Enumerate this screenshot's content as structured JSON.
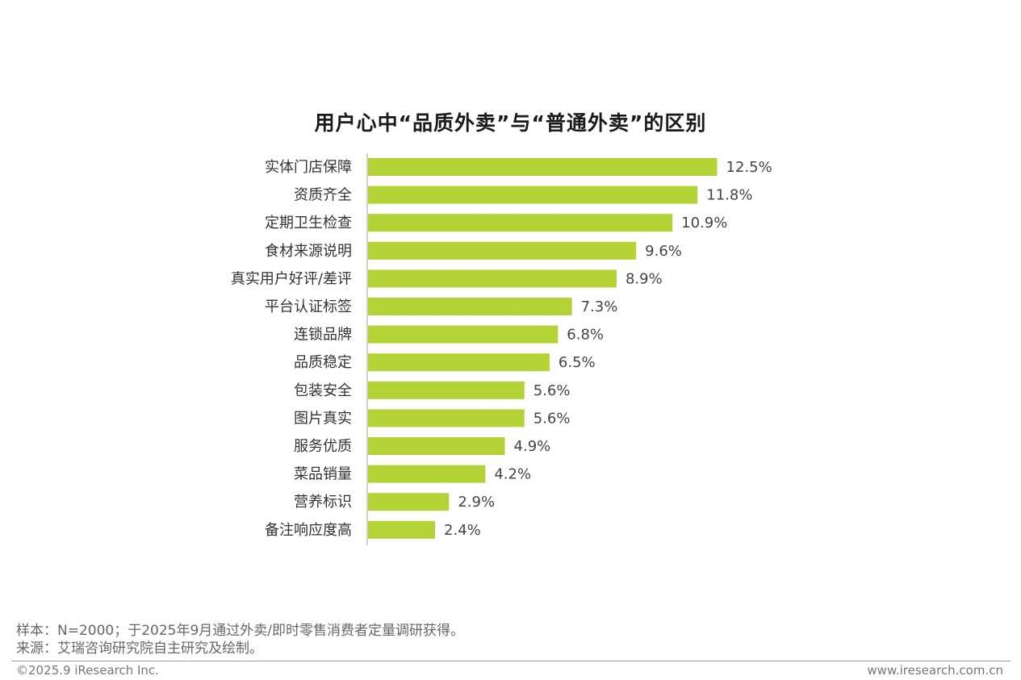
{
  "chart_data": {
    "type": "bar",
    "orientation": "horizontal",
    "title": "用户心中“品质外卖”与“普通外卖”的区别",
    "categories": [
      "实体门店保障",
      "资质齐全",
      "定期卫生检查",
      "食材来源说明",
      "真实用户好评/差评",
      "平台认证标签",
      "连锁品牌",
      "品质稳定",
      "包装安全",
      "图片真实",
      "服务优质",
      "菜品销量",
      "营养标识",
      "备注响应度高"
    ],
    "values": [
      12.5,
      11.8,
      10.9,
      9.6,
      8.9,
      7.3,
      6.8,
      6.5,
      5.6,
      5.6,
      4.9,
      4.2,
      2.9,
      2.4
    ],
    "value_labels": [
      "12.5%",
      "11.8%",
      "10.9%",
      "9.6%",
      "8.9%",
      "7.3%",
      "6.8%",
      "6.5%",
      "5.6%",
      "5.6%",
      "4.9%",
      "4.2%",
      "2.9%",
      "2.4%"
    ],
    "unit": "%",
    "bar_color": "#b2d235",
    "grid": false,
    "legend": "none"
  },
  "footer": {
    "sample": "样本：N=2000；于2025年9月通过外卖/即时零售消费者定量调研获得。",
    "source": "来源：艾瑞咨询研究院自主研究及绘制。",
    "copyright": "©2025.9 iResearch Inc.",
    "website": "www.iresearch.com.cn"
  }
}
